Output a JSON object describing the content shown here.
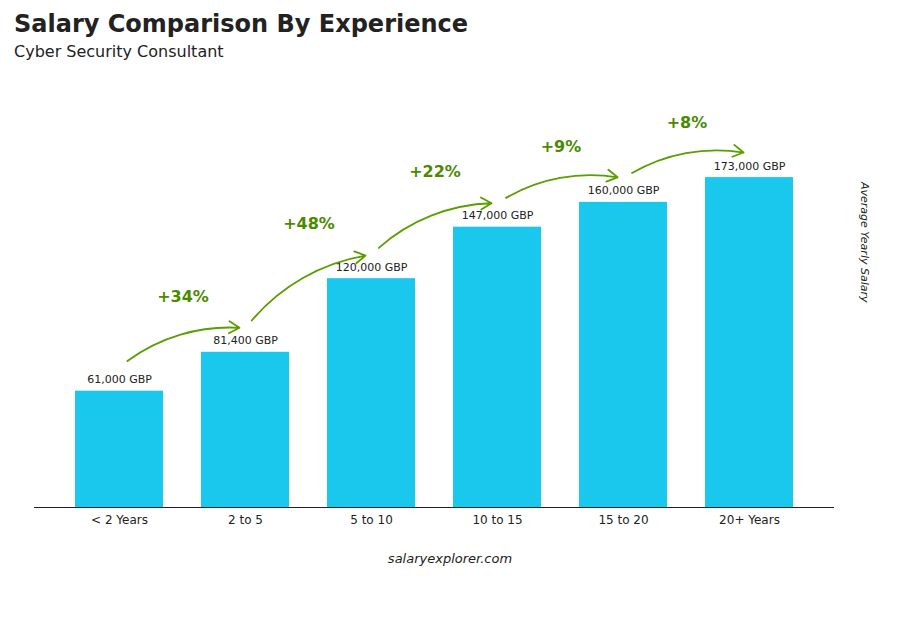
{
  "chart_data": {
    "type": "bar",
    "title": "Salary Comparison By Experience",
    "subtitle": "Cyber Security Consultant",
    "ylabel": "Average Yearly Salary",
    "categories": [
      "< 2 Years",
      "2 to 5",
      "5 to 10",
      "10 to 15",
      "15 to 20",
      "20+ Years"
    ],
    "values": [
      61000,
      81400,
      120000,
      147000,
      160000,
      173000
    ],
    "value_labels": [
      "61,000 GBP",
      "81,400 GBP",
      "120,000 GBP",
      "147,000 GBP",
      "160,000 GBP",
      "173,000 GBP"
    ],
    "data_labels": true,
    "color": "#1ac8ed",
    "ylim": [
      0,
      215000
    ],
    "tick_labels": "x",
    "grid": false,
    "annotations": [
      "+34%",
      "+48%",
      "+22%",
      "+9%",
      "+8%"
    ],
    "caption": "salaryexplorer.com"
  }
}
